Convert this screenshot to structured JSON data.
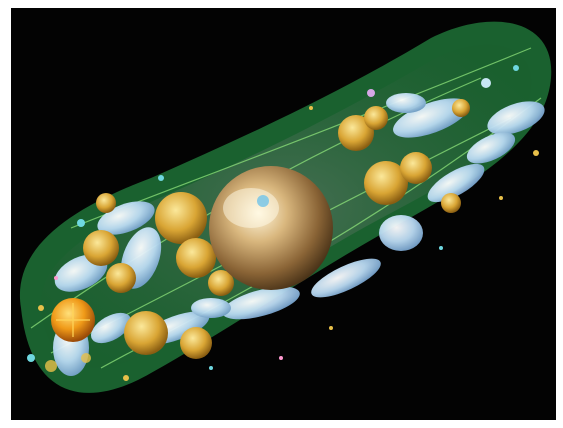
{
  "image": {
    "description_colors": {
      "background": "#030303",
      "membrane": "#1f7a3a",
      "nucleus": "#a8814a",
      "golgi_blue": "#c8e2f6",
      "vesicle_yellow": "#e0b43a",
      "fiber_green": "#7fdc6a"
    }
  }
}
